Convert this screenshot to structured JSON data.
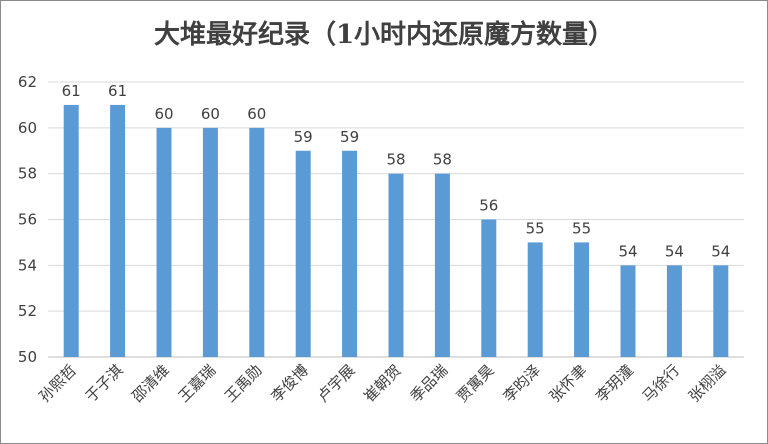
{
  "chart_data": {
    "type": "bar",
    "title": "大堆最好纪录（1小时内还原魔方数量）",
    "categories": [
      "孙熙哲",
      "于子淇",
      "邵清维",
      "王嘉瑞",
      "王禹勋",
      "李俊博",
      "卢宇展",
      "崔朝贺",
      "季品瑞",
      "贾寓昊",
      "李昀泽",
      "张怀聿",
      "李玥潼",
      "马徐行",
      "张栩溢"
    ],
    "values": [
      61,
      61,
      60,
      60,
      60,
      59,
      59,
      58,
      58,
      56,
      55,
      55,
      54,
      54,
      54
    ],
    "ylim": [
      50,
      62
    ],
    "yticks": [
      50,
      52,
      54,
      56,
      58,
      60,
      62
    ],
    "xlabel": "",
    "ylabel": "",
    "grid": true,
    "legend": "none",
    "bar_color": "#5b9bd5"
  }
}
